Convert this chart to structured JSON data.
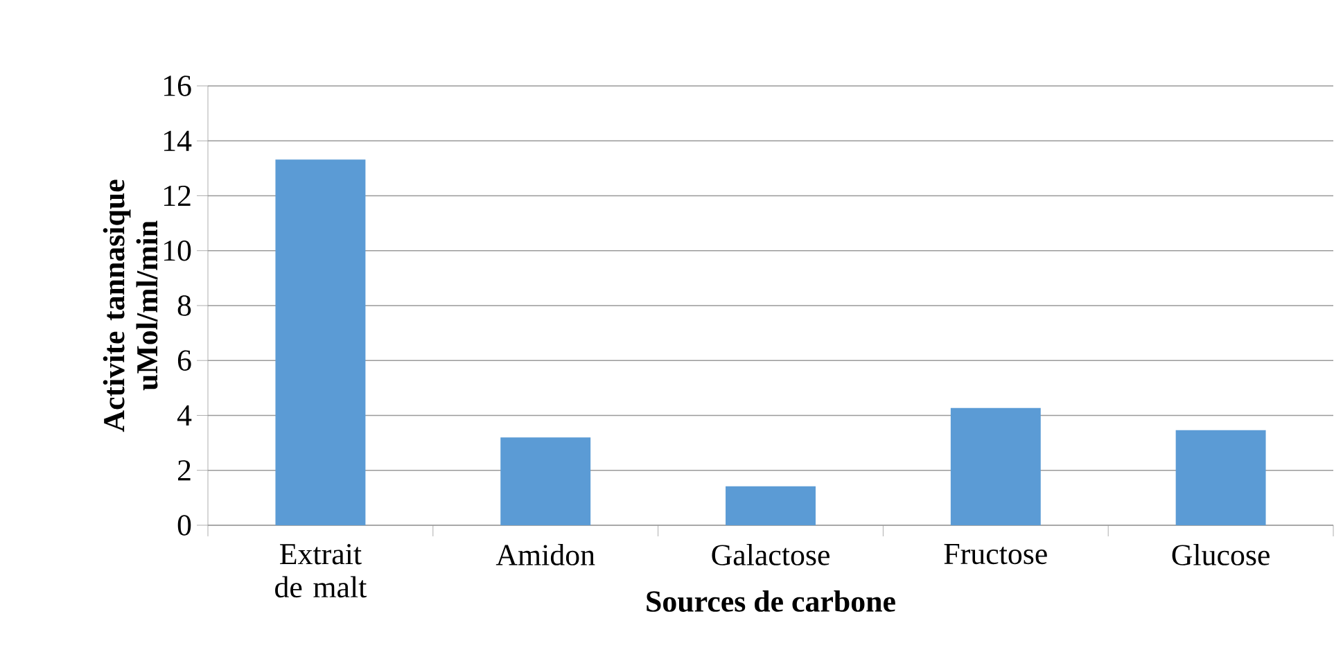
{
  "chart_data": {
    "type": "bar",
    "xlabel": "Sources de carbone",
    "ylabel": "Activite tannasique uMol/ml/min",
    "categories": [
      "Extrait de malt",
      "Amidon",
      "Galactose",
      "Fructose",
      "Glucose"
    ],
    "values": [
      13.32,
      3.2,
      1.42,
      4.27,
      3.46
    ],
    "color": "#5b9bd5",
    "ylim": [
      0,
      16
    ],
    "yticks": [
      0,
      2,
      4,
      6,
      8,
      10,
      12,
      14,
      16
    ],
    "grid": "y"
  }
}
